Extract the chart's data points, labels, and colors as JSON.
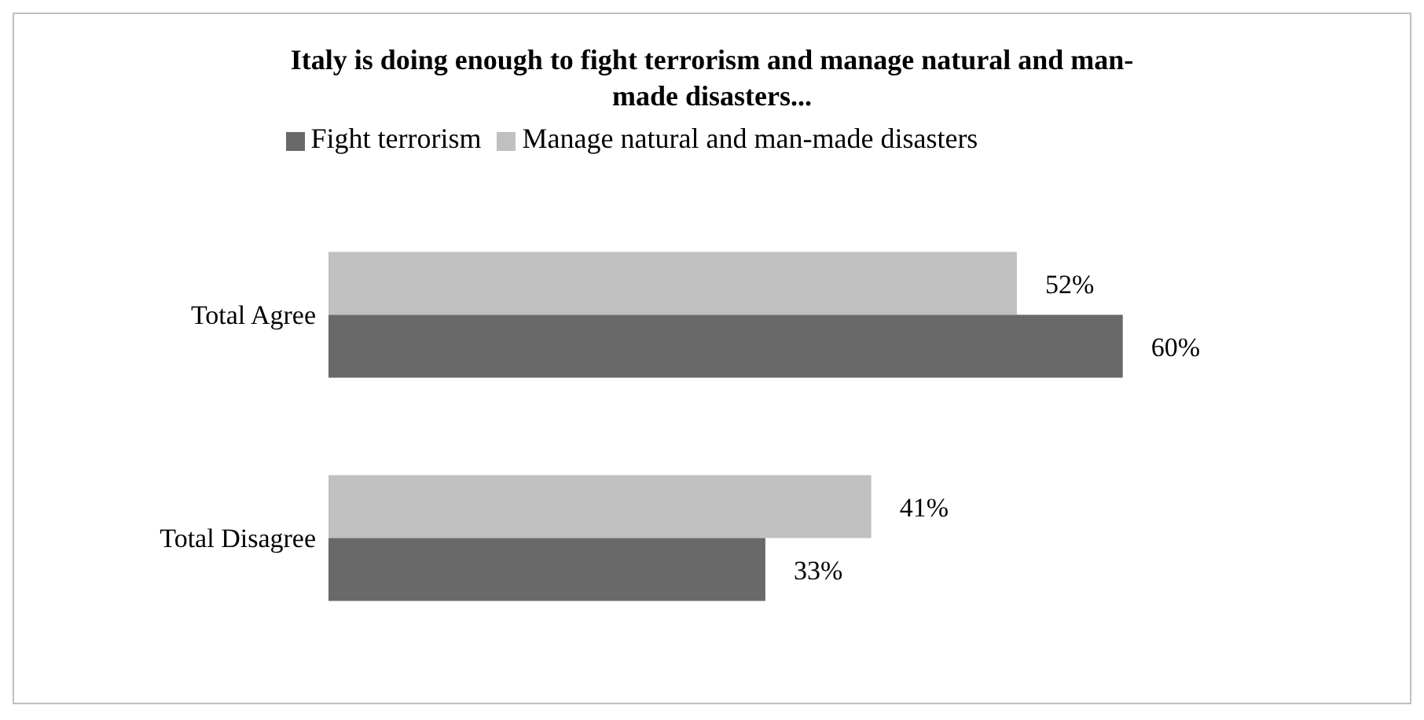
{
  "chart_data": {
    "type": "bar",
    "orientation": "horizontal",
    "title": "Italy is doing enough to fight terrorism and manage natural and man-made disasters...",
    "categories": [
      "Total Agree",
      "Total Disagree"
    ],
    "series": [
      {
        "name": "Manage natural and man-made disasters",
        "color": "#c0c0c0",
        "values": [
          52,
          41
        ],
        "value_labels": [
          "52%",
          "41%"
        ]
      },
      {
        "name": "Fight terrorism",
        "color": "#696969",
        "values": [
          60,
          33
        ],
        "value_labels": [
          "60%",
          "33%"
        ]
      }
    ],
    "legend": "top",
    "grid": false
  }
}
